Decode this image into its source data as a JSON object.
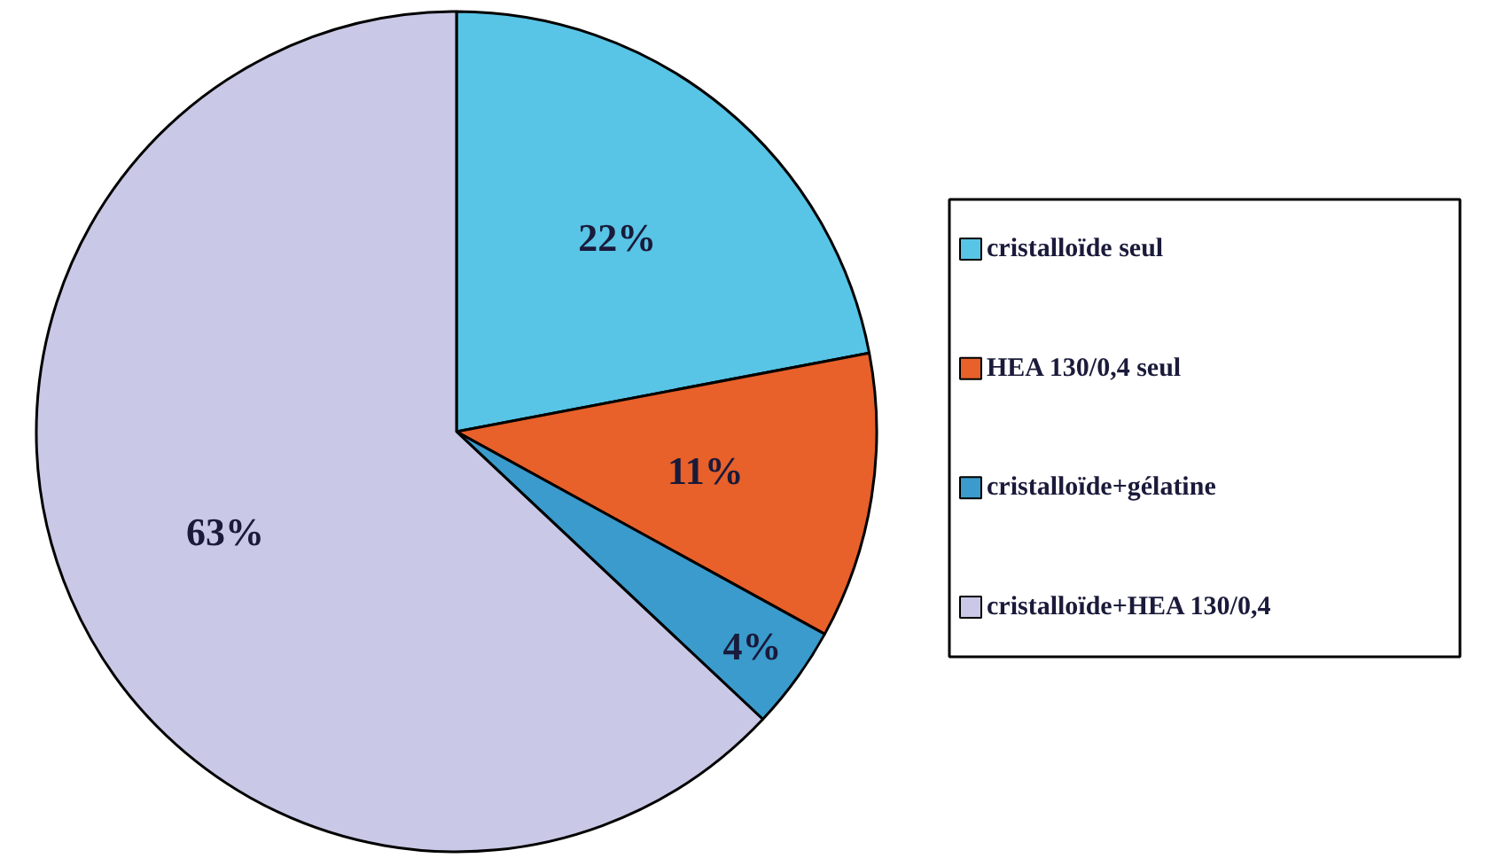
{
  "chart_data": {
    "type": "pie",
    "categories": [
      "cristalloïde seul",
      "HEA 130/0,4 seul",
      "cristalloïde+gélatine",
      "cristalloïde+HEA 130/0,4"
    ],
    "values": [
      22,
      11,
      4,
      63
    ],
    "colors": [
      "#58c4e6",
      "#e8602a",
      "#3a9bcc",
      "#c9c8e6"
    ],
    "value_labels": [
      "22%",
      "11%",
      "4%",
      "63%"
    ],
    "legend": "right"
  }
}
